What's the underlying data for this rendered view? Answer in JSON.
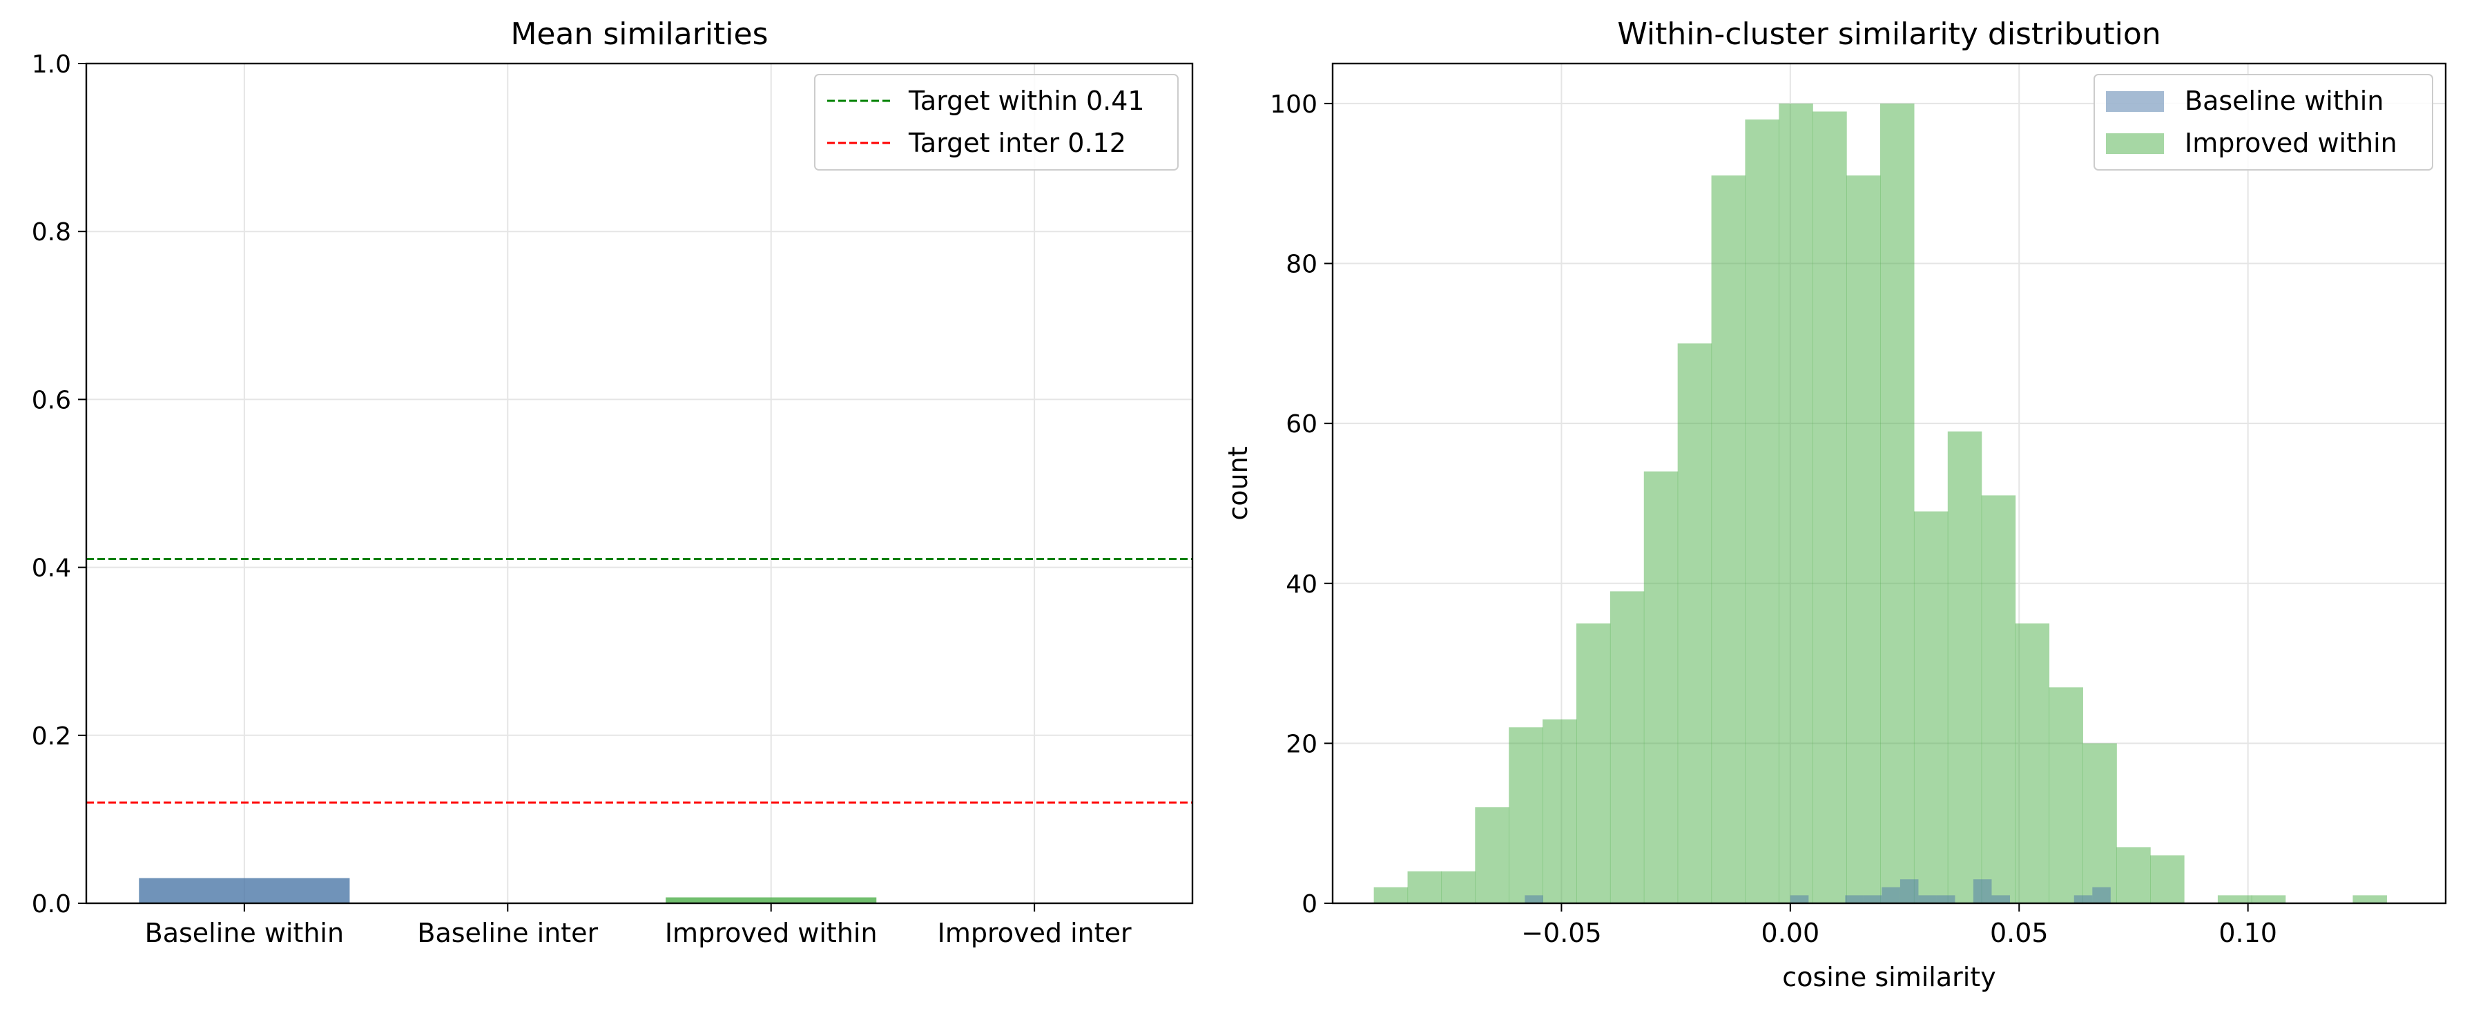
{
  "chart_data": [
    {
      "type": "bar",
      "title": "Mean similarities",
      "xlabel": "",
      "ylabel": "",
      "categories": [
        "Baseline within",
        "Baseline inter",
        "Improved within",
        "Improved inter"
      ],
      "values": [
        0.03,
        0.0,
        0.007,
        0.0
      ],
      "bar_colors": [
        "#4c78a8",
        "#4c78a8",
        "#4daf4a",
        "#4daf4a"
      ],
      "ylim": [
        0,
        1.0
      ],
      "yticks": [
        "0.0",
        "0.2",
        "0.4",
        "0.6",
        "0.8",
        "1.0"
      ],
      "ytick_values": [
        0,
        0.2,
        0.4,
        0.6,
        0.8,
        1.0
      ],
      "grid": true,
      "legend": "top-right",
      "reference_lines": [
        {
          "name": "Target within 0.41",
          "value": 0.41,
          "color": "#008000"
        },
        {
          "name": "Target inter 0.12",
          "value": 0.12,
          "color": "#ff0000"
        }
      ]
    },
    {
      "type": "histogram",
      "title": "Within-cluster similarity distribution",
      "xlabel": "cosine similarity",
      "ylabel": "count",
      "xlim": [
        -0.1,
        0.1432
      ],
      "ylim": [
        0,
        105
      ],
      "xticks": [
        "−0.05",
        "0.00",
        "0.05",
        "0.10"
      ],
      "xtick_values": [
        -0.05,
        0.0,
        0.05,
        0.1
      ],
      "yticks": [
        "0",
        "20",
        "40",
        "60",
        "80",
        "100"
      ],
      "ytick_values": [
        0,
        20,
        40,
        60,
        80,
        100
      ],
      "grid": true,
      "legend": "top-right",
      "series": [
        {
          "name": "Baseline within",
          "color": "#4c78a8",
          "bins": [
            [
              -0.058,
              -0.054,
              1
            ],
            [
              0.0,
              0.004,
              1
            ],
            [
              0.012,
              0.016,
              1
            ],
            [
              0.016,
              0.02,
              1
            ],
            [
              0.02,
              0.024,
              2
            ],
            [
              0.024,
              0.028,
              3
            ],
            [
              0.028,
              0.032,
              1
            ],
            [
              0.032,
              0.036,
              1
            ],
            [
              0.04,
              0.044,
              3
            ],
            [
              0.044,
              0.048,
              1
            ],
            [
              0.062,
              0.066,
              1
            ],
            [
              0.066,
              0.07,
              2
            ]
          ]
        },
        {
          "name": "Improved within",
          "color": "#4daf4a",
          "bin_start": -0.091,
          "bin_width": 0.007376,
          "counts": [
            2,
            4,
            4,
            12,
            22,
            23,
            35,
            39,
            54,
            70,
            91,
            98,
            100,
            99,
            91,
            100,
            49,
            59,
            51,
            35,
            27,
            20,
            7,
            6,
            0,
            1,
            1,
            0,
            0,
            1
          ]
        }
      ]
    }
  ]
}
